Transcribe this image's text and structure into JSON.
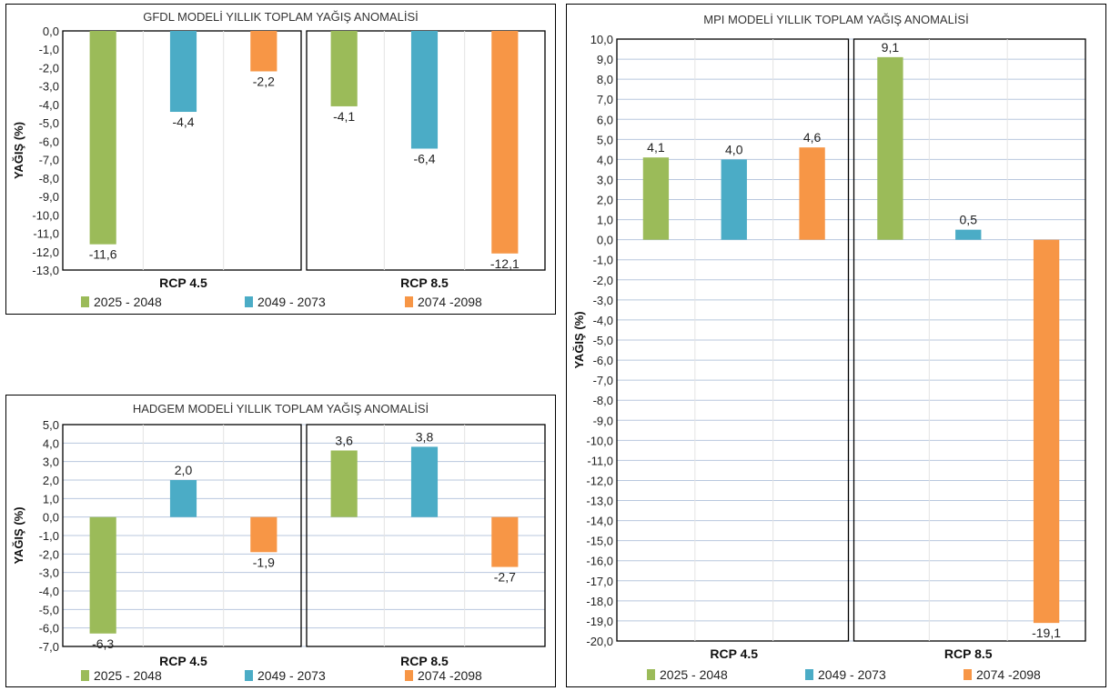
{
  "legend": [
    "2025 - 2048",
    "2049 - 2073",
    "2074 -2098"
  ],
  "colors": [
    "#9bbb59",
    "#4bacc6",
    "#f79646"
  ],
  "chart_data": [
    {
      "type": "bar",
      "title": "GFDL MODELİ YILLIK TOPLAM YAĞIŞ ANOMALİSİ",
      "ylabel": "YAĞIŞ (%)",
      "ylim": [
        -13,
        0
      ],
      "ytick_step": 1,
      "grid": false,
      "categories": [
        "RCP 4.5",
        "RCP 8.5"
      ],
      "series": [
        {
          "name": "2025 - 2048",
          "values": [
            -11.6,
            -4.1
          ]
        },
        {
          "name": "2049 - 2073",
          "values": [
            -4.4,
            -6.4
          ]
        },
        {
          "name": "2074 -2098",
          "values": [
            -2.2,
            -12.1
          ]
        }
      ],
      "data_labels": [
        [
          "-11,6",
          "-4,1"
        ],
        [
          "-4,4",
          "-6,4"
        ],
        [
          "-2,2",
          "-12,1"
        ]
      ],
      "yticks": [
        "0,0",
        "-1,0",
        "-2,0",
        "-3,0",
        "-4,0",
        "-5,0",
        "-6,0",
        "-7,0",
        "-8,0",
        "-9,0",
        "-10,0",
        "-11,0",
        "-12,0",
        "-13,0"
      ]
    },
    {
      "type": "bar",
      "title": "HADGEM MODELİ YILLIK TOPLAM YAĞIŞ ANOMALİSİ",
      "ylabel": "YAĞIŞ (%)",
      "ylim": [
        -7,
        5
      ],
      "ytick_step": 1,
      "grid": true,
      "categories": [
        "RCP 4.5",
        "RCP 8.5"
      ],
      "series": [
        {
          "name": "2025 - 2048",
          "values": [
            -6.3,
            3.6
          ]
        },
        {
          "name": "2049 - 2073",
          "values": [
            2.0,
            3.8
          ]
        },
        {
          "name": "2074 -2098",
          "values": [
            -1.9,
            -2.7
          ]
        }
      ],
      "data_labels": [
        [
          "-6,3",
          "3,6"
        ],
        [
          "2,0",
          "3,8"
        ],
        [
          "-1,9",
          "-2,7"
        ]
      ],
      "yticks": [
        "5,0",
        "4,0",
        "3,0",
        "2,0",
        "1,0",
        "0,0",
        "-1,0",
        "-2,0",
        "-3,0",
        "-4,0",
        "-5,0",
        "-6,0",
        "-7,0"
      ]
    },
    {
      "type": "bar",
      "title": "MPI MODELİ YILLIK TOPLAM YAĞIŞ ANOMALİSİ",
      "ylabel": "YAĞIŞ (%)",
      "ylim": [
        -20,
        10
      ],
      "ytick_step": 1,
      "grid": true,
      "categories": [
        "RCP 4.5",
        "RCP 8.5"
      ],
      "series": [
        {
          "name": "2025 - 2048",
          "values": [
            4.1,
            9.1
          ]
        },
        {
          "name": "2049 - 2073",
          "values": [
            4.0,
            0.5
          ]
        },
        {
          "name": "2074 -2098",
          "values": [
            4.6,
            -19.1
          ]
        }
      ],
      "data_labels": [
        [
          "4,1",
          "9,1"
        ],
        [
          "4,0",
          "0,5"
        ],
        [
          "4,6",
          "-19,1"
        ]
      ],
      "yticks": [
        "10,0",
        "9,0",
        "8,0",
        "7,0",
        "6,0",
        "5,0",
        "4,0",
        "3,0",
        "2,0",
        "1,0",
        "0,0",
        "-1,0",
        "-2,0",
        "-3,0",
        "-4,0",
        "-5,0",
        "-6,0",
        "-7,0",
        "-8,0",
        "-9,0",
        "-10,0",
        "-11,0",
        "-12,0",
        "-13,0",
        "-14,0",
        "-15,0",
        "-16,0",
        "-17,0",
        "-18,0",
        "-19,0",
        "-20,0"
      ]
    }
  ]
}
